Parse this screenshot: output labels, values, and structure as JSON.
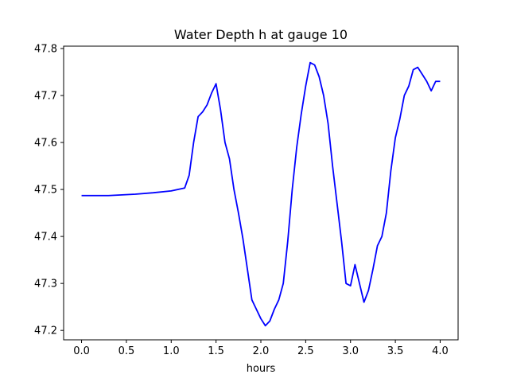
{
  "chart_data": {
    "type": "line",
    "title": "Water Depth h at gauge 10",
    "xlabel": "hours",
    "ylabel": "",
    "xlim": [
      -0.2,
      4.2
    ],
    "ylim": [
      47.18,
      47.805
    ],
    "xticks": [
      0.0,
      0.5,
      1.0,
      1.5,
      2.0,
      2.5,
      3.0,
      3.5,
      4.0
    ],
    "xtick_labels": [
      "0.0",
      "0.5",
      "1.0",
      "1.5",
      "2.0",
      "2.5",
      "3.0",
      "3.5",
      "4.0"
    ],
    "yticks": [
      47.2,
      47.3,
      47.4,
      47.5,
      47.6,
      47.7,
      47.8
    ],
    "ytick_labels": [
      "47.2",
      "47.3",
      "47.4",
      "47.5",
      "47.6",
      "47.7",
      "47.8"
    ],
    "grid": false,
    "series": [
      {
        "color": "#0000ff",
        "x": [
          0.0,
          0.3,
          0.6,
          0.8,
          1.0,
          1.15,
          1.2,
          1.25,
          1.3,
          1.35,
          1.4,
          1.45,
          1.5,
          1.55,
          1.6,
          1.65,
          1.7,
          1.75,
          1.8,
          1.85,
          1.9,
          1.95,
          2.0,
          2.05,
          2.1,
          2.15,
          2.2,
          2.25,
          2.3,
          2.35,
          2.4,
          2.45,
          2.5,
          2.55,
          2.6,
          2.65,
          2.7,
          2.75,
          2.8,
          2.85,
          2.9,
          2.95,
          3.0,
          3.05,
          3.1,
          3.15,
          3.2,
          3.25,
          3.3,
          3.35,
          3.4,
          3.45,
          3.5,
          3.55,
          3.6,
          3.65,
          3.7,
          3.75,
          3.8,
          3.85,
          3.9,
          3.95,
          4.0
        ],
        "y": [
          47.487,
          47.487,
          47.49,
          47.493,
          47.497,
          47.503,
          47.53,
          47.6,
          47.655,
          47.665,
          47.68,
          47.705,
          47.725,
          47.67,
          47.6,
          47.565,
          47.5,
          47.45,
          47.395,
          47.33,
          47.265,
          47.245,
          47.225,
          47.21,
          47.22,
          47.245,
          47.265,
          47.3,
          47.39,
          47.5,
          47.59,
          47.66,
          47.72,
          47.77,
          47.765,
          47.74,
          47.7,
          47.64,
          47.55,
          47.47,
          47.39,
          47.3,
          47.295,
          47.34,
          47.3,
          47.26,
          47.285,
          47.33,
          47.38,
          47.4,
          47.45,
          47.54,
          47.61,
          47.65,
          47.7,
          47.72,
          47.755,
          47.76,
          47.745,
          47.73,
          47.71,
          47.73,
          47.73
        ]
      }
    ]
  }
}
